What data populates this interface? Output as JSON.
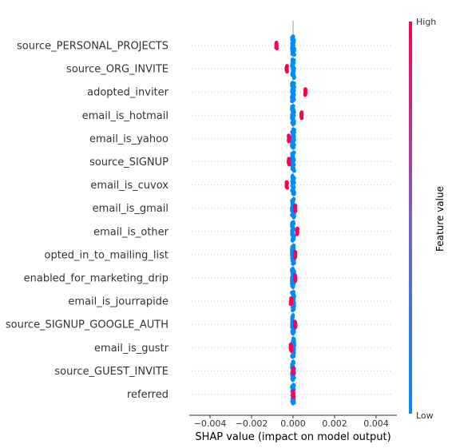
{
  "chart_data": {
    "type": "scatter",
    "subtype": "shap-beeswarm",
    "xlabel": "SHAP value (impact on model output)",
    "xlim": [
      -0.005,
      0.005
    ],
    "xticks": [
      -0.004,
      -0.002,
      0.0,
      0.002,
      0.004
    ],
    "xtick_labels": [
      "−0.004",
      "−0.002",
      "0.000",
      "0.002",
      "0.004"
    ],
    "colorbar": {
      "title": "Feature value",
      "high_label": "High",
      "low_label": "Low",
      "high_color": "#ff0052",
      "low_color": "#008bfb"
    },
    "features": [
      {
        "name": "source_PERSONAL_PROJECTS",
        "high_cluster": -0.0008,
        "low_cluster": 0.0,
        "low_spread": 0.00015
      },
      {
        "name": "source_ORG_INVITE",
        "high_cluster": -0.0003,
        "low_cluster": 0.0,
        "low_spread": 0.00015
      },
      {
        "name": "adopted_inviter",
        "high_cluster": 0.0006,
        "low_cluster": 0.0,
        "low_spread": 0.00015
      },
      {
        "name": "email_is_hotmail",
        "high_cluster": 0.0004,
        "low_cluster": 0.0,
        "low_spread": 0.00015
      },
      {
        "name": "email_is_yahoo",
        "high_cluster": -0.0002,
        "low_cluster": 0.0,
        "low_spread": 0.00015
      },
      {
        "name": "source_SIGNUP",
        "high_cluster": -0.0002,
        "low_cluster": 0.0,
        "low_spread": 0.00015
      },
      {
        "name": "email_is_cuvox",
        "high_cluster": -0.0003,
        "low_cluster": 0.0,
        "low_spread": 0.00015
      },
      {
        "name": "email_is_gmail",
        "high_cluster": 0.0001,
        "low_cluster": 0.0,
        "low_spread": 0.00015
      },
      {
        "name": "email_is_other",
        "high_cluster": 0.0002,
        "low_cluster": 0.0,
        "low_spread": 0.00015
      },
      {
        "name": "opted_in_to_mailing_list",
        "high_cluster": 0.0001,
        "low_cluster": 0.0,
        "low_spread": 0.00015
      },
      {
        "name": "enabled_for_marketing_drip",
        "high_cluster": 0.0001,
        "low_cluster": 0.0,
        "low_spread": 0.00015
      },
      {
        "name": "email_is_jourrapide",
        "high_cluster": -0.0001,
        "low_cluster": 0.0,
        "low_spread": 0.00015
      },
      {
        "name": "source_SIGNUP_GOOGLE_AUTH",
        "high_cluster": 0.0001,
        "low_cluster": 0.0,
        "low_spread": 0.00015
      },
      {
        "name": "email_is_gustr",
        "high_cluster": -0.0001,
        "low_cluster": 0.0,
        "low_spread": 0.00015
      },
      {
        "name": "source_GUEST_INVITE",
        "high_cluster": 0.0,
        "low_cluster": 0.0,
        "low_spread": 0.00015
      },
      {
        "name": "referred",
        "high_cluster": 0.0,
        "low_cluster": 0.0,
        "low_spread": 0.00015
      }
    ]
  }
}
